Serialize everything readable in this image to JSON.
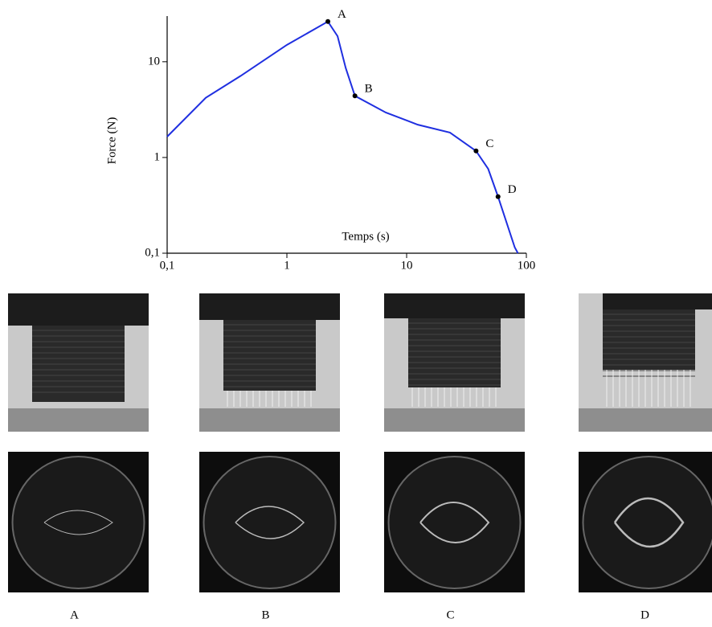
{
  "chart_data": {
    "type": "line",
    "log_x": true,
    "log_y": true,
    "x_label": "Temps (s)",
    "y_label": "Force (N)",
    "xlim": [
      0.1,
      100
    ],
    "ylim": [
      0.1,
      30
    ],
    "xticks": [
      {
        "value": 0.1,
        "label": "0,1"
      },
      1,
      10,
      100
    ],
    "yticks": [
      {
        "value": 0.1,
        "label": "0,1"
      },
      1,
      10
    ],
    "series": [
      {
        "color": "#1f2fe0",
        "x": [
          0.1,
          0.21,
          0.41,
          1,
          2.2,
          2.65,
          3.1,
          3.7,
          6.7,
          12.4,
          23,
          38,
          48,
          58,
          80,
          85
        ],
        "values": [
          1.65,
          4.2,
          7.1,
          15,
          26.3,
          18.5,
          8.6,
          4.4,
          2.95,
          2.2,
          1.82,
          1.17,
          0.76,
          0.39,
          0.115,
          0.1
        ]
      }
    ],
    "points": [
      {
        "x": 2.2,
        "y": 26.3,
        "label": "A"
      },
      {
        "x": 3.7,
        "y": 4.4,
        "label": "B"
      },
      {
        "x": 38,
        "y": 1.17,
        "label": "C"
      },
      {
        "x": 58,
        "y": 0.39,
        "label": "D"
      }
    ]
  },
  "panels": [
    "A",
    "B",
    "C",
    "D"
  ]
}
